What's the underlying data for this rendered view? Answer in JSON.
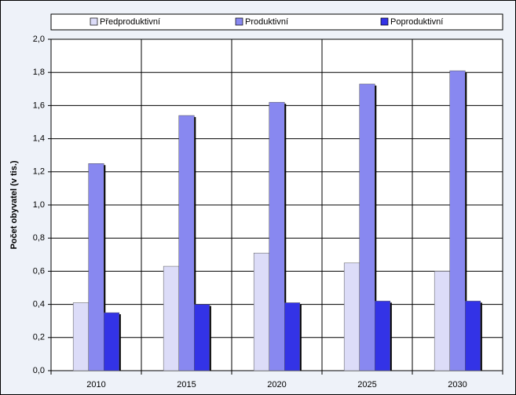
{
  "chart_data": {
    "type": "bar",
    "y_label": "Počet obyvatel (v tis.)",
    "categories": [
      "2010",
      "2015",
      "2020",
      "2025",
      "2030"
    ],
    "series": [
      {
        "name": "Předproduktivní",
        "color": "#dcdcf8",
        "values": [
          0.41,
          0.63,
          0.71,
          0.65,
          0.6
        ]
      },
      {
        "name": "Produktivní",
        "color": "#8888f0",
        "values": [
          1.25,
          1.54,
          1.62,
          1.73,
          1.81
        ]
      },
      {
        "name": "Poproduktivní",
        "color": "#3333e6",
        "values": [
          0.35,
          0.4,
          0.41,
          0.42,
          0.42
        ]
      }
    ],
    "ylim": [
      0,
      2
    ],
    "yticks": [
      {
        "value": 0,
        "label": "0,0"
      },
      {
        "value": 0.2,
        "label": "0,2"
      },
      {
        "value": 0.4,
        "label": "0,4"
      },
      {
        "value": 0.6,
        "label": "0,6"
      },
      {
        "value": 0.8,
        "label": "0,8"
      },
      {
        "value": 1,
        "label": "1,0"
      },
      {
        "value": 1.2,
        "label": "1,2"
      },
      {
        "value": 1.4,
        "label": "1,4"
      },
      {
        "value": 1.6,
        "label": "1,6"
      },
      {
        "value": 1.8,
        "label": "1,8"
      },
      {
        "value": 2,
        "label": "2,0"
      }
    ],
    "grid": true
  }
}
